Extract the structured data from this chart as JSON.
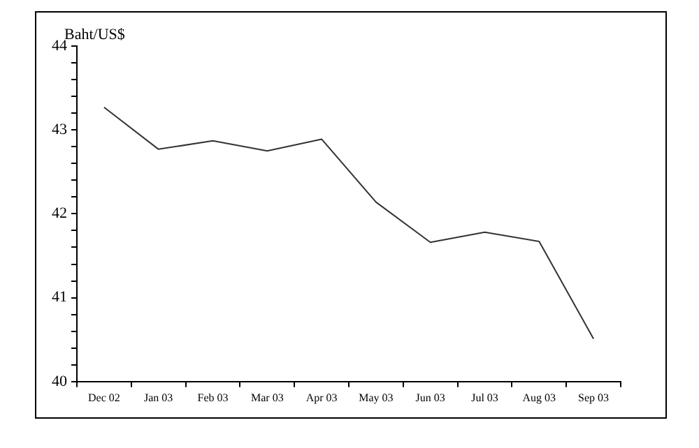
{
  "chart_data": {
    "type": "line",
    "ylabel": "Baht/US$",
    "categories": [
      "Dec 02",
      "Jan 03",
      "Feb 03",
      "Mar 03",
      "Apr 03",
      "May 03",
      "Jun 03",
      "Jul 03",
      "Aug 03",
      "Sep 03"
    ],
    "series": [
      {
        "color": "#333333",
        "values": [
          43.27,
          42.77,
          42.87,
          42.75,
          42.89,
          42.14,
          41.66,
          41.78,
          41.67,
          40.51
        ]
      }
    ],
    "ylim": [
      40,
      44
    ],
    "yticks": [
      40,
      {
        "value": 40.2,
        "label": null
      },
      {
        "value": 40.4,
        "label": null
      },
      {
        "value": 40.6,
        "label": null
      },
      {
        "value": 40.8,
        "label": null
      },
      41,
      {
        "value": 41.2,
        "label": null
      },
      {
        "value": 41.4,
        "label": null
      },
      {
        "value": 41.6,
        "label": null
      },
      {
        "value": 41.8,
        "label": null
      },
      42,
      {
        "value": 42.2,
        "label": null
      },
      {
        "value": 42.4,
        "label": null
      },
      {
        "value": 42.6,
        "label": null
      },
      {
        "value": 42.8,
        "label": null
      },
      43,
      {
        "value": 43.2,
        "label": null
      },
      {
        "value": 43.4,
        "label": null
      },
      {
        "value": 43.6,
        "label": null
      },
      {
        "value": 43.8,
        "label": null
      },
      44
    ],
    "grid": false,
    "legend": false,
    "marker": "none",
    "line_style": "solid"
  }
}
